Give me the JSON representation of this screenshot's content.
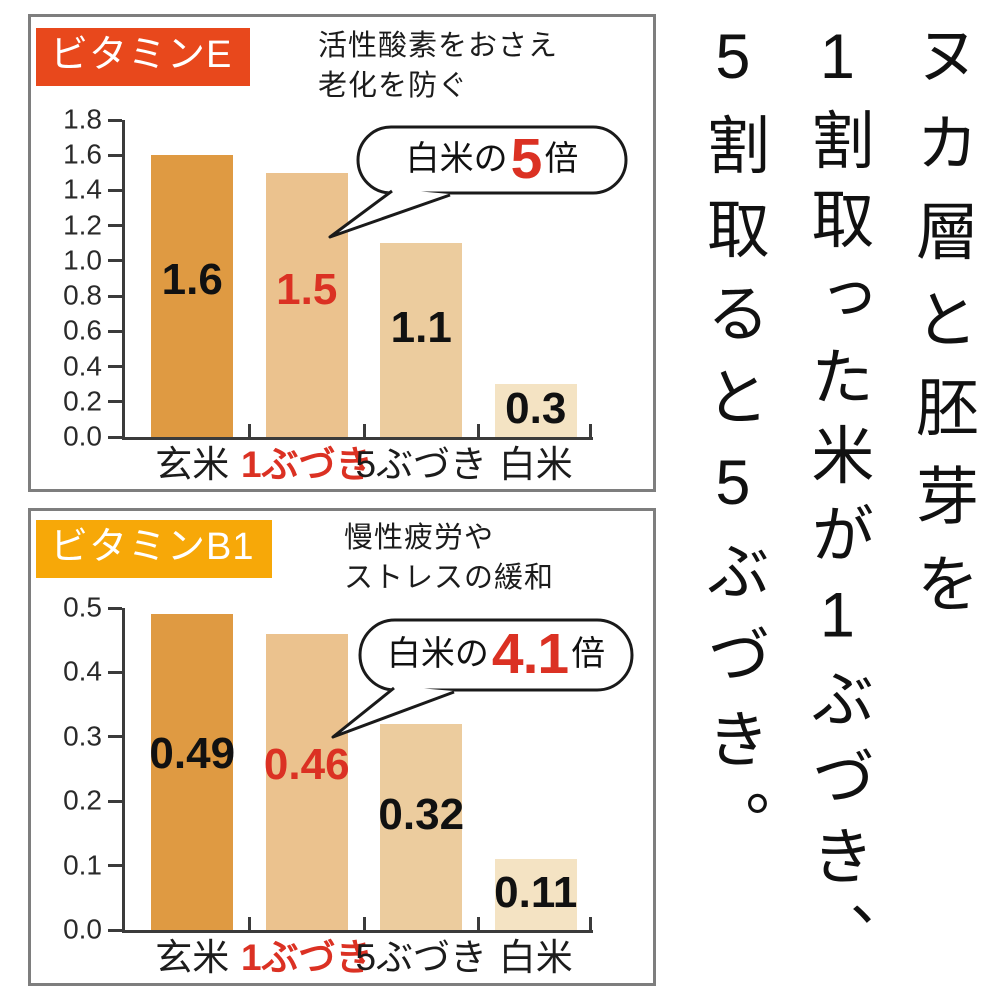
{
  "colors": {
    "accent_red": "#db3123",
    "badge_text": "#ffffff",
    "panel_border": "#7e7e7e",
    "axis": "#3b3b3b",
    "bubble_border": "#1a1a1a",
    "bar_colors": [
      "#df9a42",
      "#ebc28e",
      "#eccc9e",
      "#f4e3c3"
    ]
  },
  "panels": [
    {
      "badge_bg": "#e8481c",
      "subtitle_lines": [
        "活性酸素をおさえ",
        "老化を防ぐ"
      ],
      "callout": {
        "prefix": "白米の",
        "multiplier": "5",
        "suffix": "倍"
      }
    },
    {
      "badge_bg": "#f7a808",
      "subtitle_lines": [
        "慢性疲労や",
        "ストレスの緩和"
      ],
      "callout": {
        "prefix": "白米の",
        "multiplier": "4.1",
        "suffix": "倍"
      }
    }
  ],
  "side_note": {
    "lines": [
      "ヌカ層と胚芽を",
      "1割取った米が1ぶづき、",
      "5割取ると5ぶづき。"
    ]
  },
  "chart_data": [
    {
      "type": "bar",
      "title": "ビタミンE",
      "categories": [
        "玄米",
        "1ぶづき",
        "5ぶづき",
        "白米"
      ],
      "values": [
        1.6,
        1.5,
        1.1,
        0.3
      ],
      "value_labels": [
        "1.6",
        "1.5",
        "1.1",
        "0.3"
      ],
      "highlight_index": 1,
      "annotation": "白米の5倍",
      "xlabel": "",
      "ylabel": "",
      "ylim": [
        0,
        1.8
      ],
      "ytick_step": 0.2,
      "grid": false,
      "legend": false
    },
    {
      "type": "bar",
      "title": "ビタミンB1",
      "categories": [
        "玄米",
        "1ぶづき",
        "5ぶづき",
        "白米"
      ],
      "values": [
        0.49,
        0.46,
        0.32,
        0.11
      ],
      "value_labels": [
        "0.49",
        "0.46",
        "0.32",
        "0.11"
      ],
      "highlight_index": 1,
      "annotation": "白米の4.1倍",
      "xlabel": "",
      "ylabel": "",
      "ylim": [
        0,
        0.5
      ],
      "ytick_step": 0.1,
      "grid": false,
      "legend": false
    }
  ]
}
